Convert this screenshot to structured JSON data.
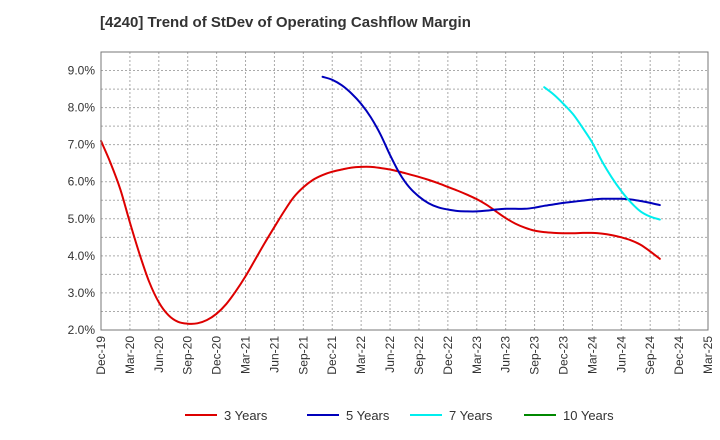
{
  "chart_data": {
    "type": "line",
    "title": "[4240]  Trend of StDev of Operating Cashflow Margin",
    "xlabel": "",
    "ylabel": "",
    "x_tick_labels": [
      "Dec-19",
      "Mar-20",
      "Jun-20",
      "Sep-20",
      "Dec-20",
      "Mar-21",
      "Jun-21",
      "Sep-21",
      "Dec-21",
      "Mar-22",
      "Jun-22",
      "Sep-22",
      "Dec-22",
      "Mar-23",
      "Jun-23",
      "Sep-23",
      "Dec-23",
      "Mar-24",
      "Jun-24",
      "Sep-24",
      "Dec-24",
      "Mar-25"
    ],
    "y_tick_labels": [
      "9.0%",
      "8.0%",
      "7.0%",
      "6.0%",
      "5.0%",
      "4.0%",
      "3.0%",
      "2.0%"
    ],
    "ylim": [
      2.0,
      9.5
    ],
    "grid": true,
    "legend_position": "bottom",
    "series": [
      {
        "name": "3 Years",
        "color": "#dd0000",
        "points": [
          [
            "Dec-19",
            7.1
          ],
          [
            "Jan-20",
            6.5
          ],
          [
            "Feb-20",
            5.8
          ],
          [
            "Mar-20",
            4.9
          ],
          [
            "Apr-20",
            4.05
          ],
          [
            "May-20",
            3.3
          ],
          [
            "Jun-20",
            2.75
          ],
          [
            "Jul-20",
            2.4
          ],
          [
            "Aug-20",
            2.22
          ],
          [
            "Sep-20",
            2.17
          ],
          [
            "Oct-20",
            2.18
          ],
          [
            "Nov-20",
            2.27
          ],
          [
            "Dec-20",
            2.44
          ],
          [
            "Jan-21",
            2.7
          ],
          [
            "Feb-21",
            3.05
          ],
          [
            "Mar-21",
            3.45
          ],
          [
            "Apr-21",
            3.9
          ],
          [
            "May-21",
            4.35
          ],
          [
            "Jun-21",
            4.78
          ],
          [
            "Jul-21",
            5.2
          ],
          [
            "Aug-21",
            5.58
          ],
          [
            "Sep-21",
            5.85
          ],
          [
            "Oct-21",
            6.05
          ],
          [
            "Nov-21",
            6.18
          ],
          [
            "Dec-21",
            6.27
          ],
          [
            "Jan-22",
            6.33
          ],
          [
            "Feb-22",
            6.38
          ],
          [
            "Mar-22",
            6.4
          ],
          [
            "Apr-22",
            6.4
          ],
          [
            "May-22",
            6.37
          ],
          [
            "Jun-22",
            6.33
          ],
          [
            "Jul-22",
            6.27
          ],
          [
            "Aug-22",
            6.2
          ],
          [
            "Sep-22",
            6.13
          ],
          [
            "Oct-22",
            6.05
          ],
          [
            "Nov-22",
            5.96
          ],
          [
            "Dec-22",
            5.86
          ],
          [
            "Jan-23",
            5.76
          ],
          [
            "Feb-23",
            5.65
          ],
          [
            "Mar-23",
            5.53
          ],
          [
            "Apr-23",
            5.38
          ],
          [
            "May-23",
            5.2
          ],
          [
            "Jun-23",
            5.02
          ],
          [
            "Jul-23",
            4.87
          ],
          [
            "Aug-23",
            4.76
          ],
          [
            "Sep-23",
            4.68
          ],
          [
            "Oct-23",
            4.64
          ],
          [
            "Nov-23",
            4.62
          ],
          [
            "Dec-23",
            4.61
          ],
          [
            "Jan-24",
            4.61
          ],
          [
            "Feb-24",
            4.62
          ],
          [
            "Mar-24",
            4.62
          ],
          [
            "Apr-24",
            4.6
          ],
          [
            "May-24",
            4.56
          ],
          [
            "Jun-24",
            4.5
          ],
          [
            "Jul-24",
            4.42
          ],
          [
            "Aug-24",
            4.3
          ],
          [
            "Sep-24",
            4.12
          ],
          [
            "Oct-24",
            3.92
          ]
        ]
      },
      {
        "name": "5 Years",
        "color": "#0000bb",
        "points": [
          [
            "Nov-21",
            8.83
          ],
          [
            "Dec-21",
            8.75
          ],
          [
            "Jan-22",
            8.6
          ],
          [
            "Feb-22",
            8.38
          ],
          [
            "Mar-22",
            8.1
          ],
          [
            "Apr-22",
            7.74
          ],
          [
            "May-22",
            7.28
          ],
          [
            "Jun-22",
            6.72
          ],
          [
            "Jul-22",
            6.22
          ],
          [
            "Aug-22",
            5.85
          ],
          [
            "Sep-22",
            5.6
          ],
          [
            "Oct-22",
            5.42
          ],
          [
            "Nov-22",
            5.31
          ],
          [
            "Dec-22",
            5.25
          ],
          [
            "Jan-23",
            5.21
          ],
          [
            "Feb-23",
            5.2
          ],
          [
            "Mar-23",
            5.2
          ],
          [
            "Apr-23",
            5.22
          ],
          [
            "May-23",
            5.25
          ],
          [
            "Jun-23",
            5.27
          ],
          [
            "Jul-23",
            5.27
          ],
          [
            "Aug-23",
            5.27
          ],
          [
            "Sep-23",
            5.3
          ],
          [
            "Oct-23",
            5.35
          ],
          [
            "Nov-23",
            5.39
          ],
          [
            "Dec-23",
            5.43
          ],
          [
            "Jan-24",
            5.46
          ],
          [
            "Feb-24",
            5.49
          ],
          [
            "Mar-24",
            5.52
          ],
          [
            "Apr-24",
            5.54
          ],
          [
            "May-24",
            5.54
          ],
          [
            "Jun-24",
            5.54
          ],
          [
            "Jul-24",
            5.52
          ],
          [
            "Aug-24",
            5.48
          ],
          [
            "Sep-24",
            5.43
          ],
          [
            "Oct-24",
            5.37
          ]
        ]
      },
      {
        "name": "7 Years",
        "color": "#00eeee",
        "points": [
          [
            "Oct-23",
            8.55
          ],
          [
            "Nov-23",
            8.35
          ],
          [
            "Dec-23",
            8.1
          ],
          [
            "Jan-24",
            7.82
          ],
          [
            "Feb-24",
            7.45
          ],
          [
            "Mar-24",
            7.05
          ],
          [
            "Apr-24",
            6.55
          ],
          [
            "May-24",
            6.12
          ],
          [
            "Jun-24",
            5.75
          ],
          [
            "Jul-24",
            5.44
          ],
          [
            "Aug-24",
            5.2
          ],
          [
            "Sep-24",
            5.06
          ],
          [
            "Oct-24",
            4.98
          ]
        ]
      },
      {
        "name": "10 Years",
        "color": "#008800",
        "points": []
      }
    ]
  }
}
